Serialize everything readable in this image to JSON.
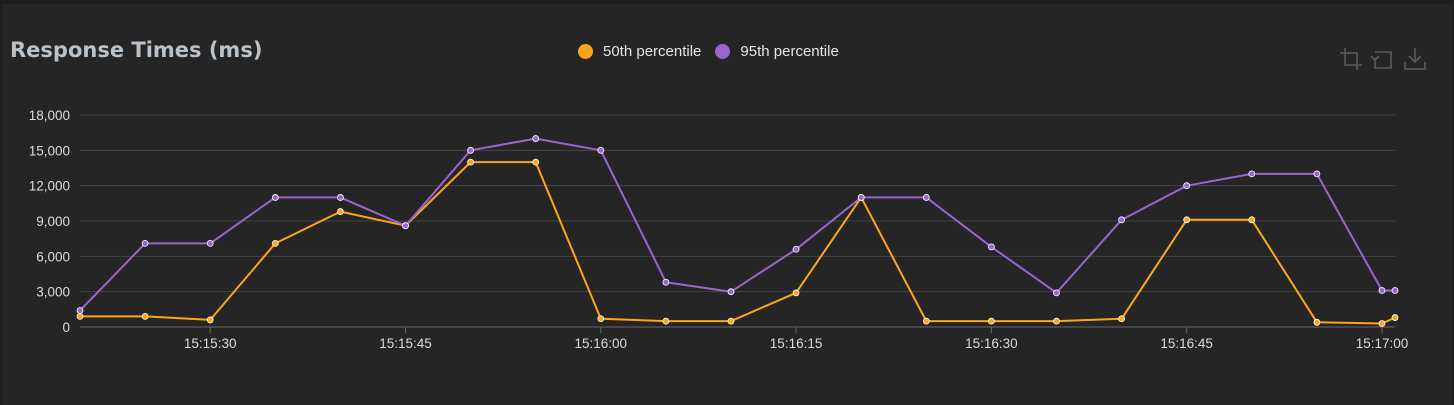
{
  "chart_data": {
    "type": "line",
    "title": "Response Times (ms)",
    "x": [
      "15:15:20",
      "15:15:25",
      "15:15:30",
      "15:15:35",
      "15:15:40",
      "15:15:45",
      "15:15:50",
      "15:15:55",
      "15:16:00",
      "15:16:05",
      "15:16:10",
      "15:16:15",
      "15:16:20",
      "15:16:25",
      "15:16:30",
      "15:16:35",
      "15:16:40",
      "15:16:45",
      "15:16:50",
      "15:16:55",
      "15:17:00",
      "15:17:01"
    ],
    "x_tick_labels": [
      "15:15:30",
      "15:15:45",
      "15:16:00",
      "15:16:15",
      "15:16:30",
      "15:16:45",
      "15:17:00"
    ],
    "y_tick_labels": [
      "0",
      "3,000",
      "6,000",
      "9,000",
      "12,000",
      "15,000",
      "18,000"
    ],
    "ylim": [
      0,
      18000
    ],
    "grid": true,
    "legend_position": "top-center",
    "series": [
      {
        "name": "50th percentile",
        "color": "#ffa51a",
        "values": [
          900,
          900,
          600,
          7100,
          9800,
          8600,
          14000,
          14000,
          700,
          500,
          500,
          2900,
          11000,
          500,
          500,
          500,
          700,
          9100,
          9100,
          400,
          300,
          800
        ]
      },
      {
        "name": "95th percentile",
        "color": "#9966cc",
        "values": [
          1400,
          7100,
          7100,
          11000,
          11000,
          8600,
          15000,
          16000,
          15000,
          3800,
          3000,
          6600,
          11000,
          11000,
          6800,
          2900,
          9100,
          12000,
          13000,
          13000,
          3100,
          3100
        ]
      }
    ]
  },
  "toolbar": {
    "icons": [
      "crop-icon",
      "reset-icon",
      "download-icon"
    ]
  }
}
